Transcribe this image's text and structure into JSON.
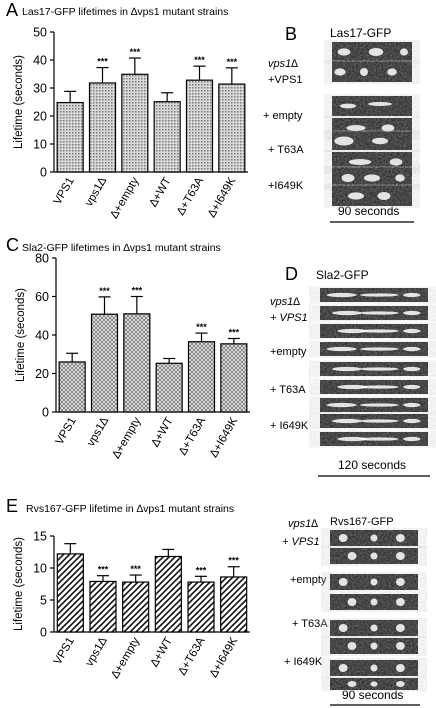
{
  "panels": {
    "A": {
      "letter": "A",
      "title": "Las17-GFP lifetimes in ∆vps1 mutant strains",
      "chart_data": {
        "type": "bar",
        "categories": [
          "VPS1",
          "vps1∆",
          "∆+empty",
          "∆+WT",
          "∆+T63A",
          "∆+I649K"
        ],
        "values": [
          24.8,
          31.8,
          34.9,
          25.1,
          32.8,
          31.4
        ],
        "errors": [
          4.0,
          5.5,
          5.8,
          3.2,
          5.0,
          5.8
        ],
        "significance": [
          "",
          "***",
          "***",
          "",
          "***",
          "***"
        ],
        "ylabel": "Lifetime (seconds)",
        "ylim": [
          0,
          50
        ],
        "yticks": [
          0,
          10,
          20,
          30,
          40,
          50
        ]
      }
    },
    "B": {
      "letter": "B",
      "title": "Las17-GFP",
      "strain_label": "vps1∆",
      "rows": [
        "+VPS1",
        "+ empty",
        "+ T63A",
        "+I649K"
      ],
      "scale_label": "90 seconds"
    },
    "C": {
      "letter": "C",
      "title": "Sla2-GFP lifetimes in ∆vps1 mutant strains",
      "chart_data": {
        "type": "bar",
        "categories": [
          "VPS1",
          "vps1∆",
          "∆+empty",
          "∆+WT",
          "∆+T63A",
          "∆+I649K"
        ],
        "values": [
          26.0,
          50.8,
          51.0,
          25.3,
          36.5,
          35.4
        ],
        "errors": [
          4.5,
          9.0,
          9.0,
          2.5,
          4.5,
          2.8
        ],
        "significance": [
          "",
          "***",
          "***",
          "",
          "***",
          "***"
        ],
        "ylabel": "Lifetime (seconds)",
        "ylim": [
          0,
          80
        ],
        "yticks": [
          0,
          20,
          40,
          60,
          80
        ]
      }
    },
    "D": {
      "letter": "D",
      "title": "Sla2-GFP",
      "strain_label": "vps1∆",
      "rows": [
        "+ VPS1",
        "+empty",
        "+ T63A",
        "+ I649K"
      ],
      "scale_label": "120 seconds"
    },
    "E": {
      "letter": "E",
      "title": "Rvs167-GFP lifetime in ∆vps1 mutant strains",
      "chart_data": {
        "type": "bar",
        "categories": [
          "VPS1",
          "vps1∆",
          "∆+empty",
          "∆+WT",
          "∆+T63A",
          "∆+I649K"
        ],
        "values": [
          12.2,
          7.9,
          7.8,
          11.8,
          7.8,
          8.6
        ],
        "errors": [
          1.6,
          0.9,
          1.1,
          1.1,
          0.9,
          1.6
        ],
        "significance": [
          "",
          "***",
          "***",
          "",
          "***",
          "***"
        ],
        "ylabel": "Lifetime (seconds)",
        "ylim": [
          0,
          15
        ],
        "yticks": [
          0,
          5,
          10,
          15
        ]
      }
    },
    "F": {
      "title": "Rvs167-GFP",
      "strain_label": "vps1∆",
      "rows": [
        "+ VPS1",
        "+empty",
        "+ T63A",
        "+ I649K"
      ],
      "scale_label": "90 seconds"
    }
  }
}
